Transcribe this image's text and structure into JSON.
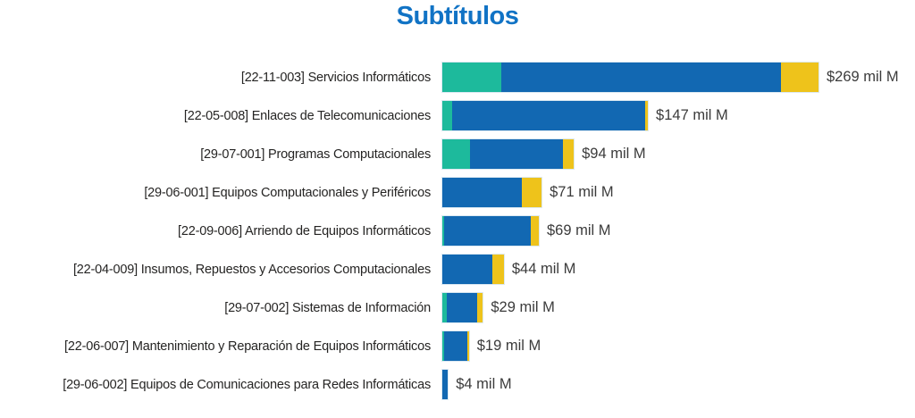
{
  "title": "Subtítulos",
  "colors": {
    "title": "#1173C5",
    "teal": "#1DBA9C",
    "blue": "#1268B2",
    "yellow": "#EEC31B",
    "category_label": "#252423",
    "value_label": "#3B3B3B"
  },
  "chart_data": {
    "type": "bar",
    "orientation": "horizontal",
    "stacked": true,
    "title": "Subtítulos",
    "legend": "none",
    "grid": false,
    "units": "mil M",
    "xlim": [
      0,
      269
    ],
    "categories": [
      "[22-11-003] Servicios Informáticos",
      "[22-05-008] Enlaces de Telecomunicaciones",
      "[29-07-001] Programas Computacionales",
      "[29-06-001] Equipos Computacionales y Periféricos",
      "[22-09-006] Arriendo de Equipos Informáticos",
      "[22-04-009] Insumos, Repuestos y Accesorios Computacionales",
      "[29-07-002] Sistemas de Información",
      "[22-06-007] Mantenimiento y Reparación de Equipos Informáticos",
      "[29-06-002] Equipos de Comunicaciones para Redes Informáticas"
    ],
    "series": [
      {
        "name": "teal",
        "color": "#1DBA9C",
        "values": [
          42,
          7,
          20,
          0,
          1,
          0,
          3,
          1,
          0
        ]
      },
      {
        "name": "blue",
        "color": "#1268B2",
        "values": [
          200,
          138,
          66,
          57,
          62,
          36,
          22,
          17,
          4
        ]
      },
      {
        "name": "yellow",
        "color": "#EEC31B",
        "values": [
          27,
          2,
          8,
          14,
          6,
          8,
          4,
          1,
          0
        ]
      }
    ],
    "totals": [
      269,
      147,
      94,
      71,
      69,
      44,
      29,
      19,
      4
    ],
    "value_labels": [
      "$269 mil M",
      "$147 mil M",
      "$94 mil M",
      "$71 mil M",
      "$69 mil M",
      "$44 mil M",
      "$29 mil M",
      "$19 mil M",
      "$4 mil M"
    ]
  }
}
